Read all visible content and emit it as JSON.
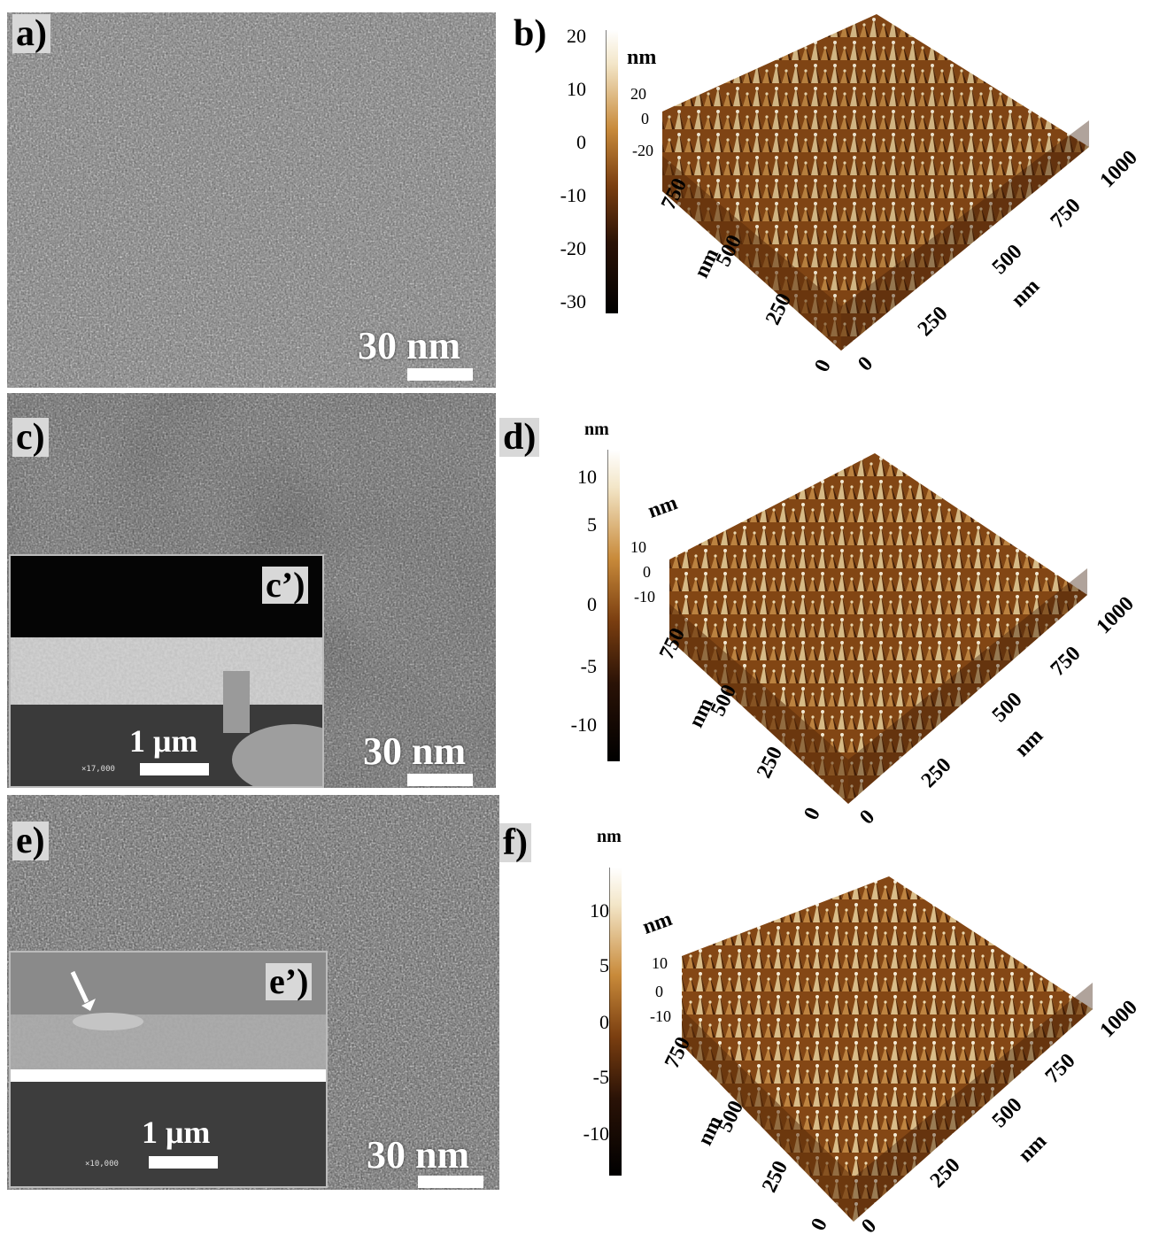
{
  "panels": {
    "a": {
      "label": "a)",
      "scale_text": "30 nm"
    },
    "b": {
      "label": "b)",
      "colorbar_ticks": [
        "20",
        "10",
        "0",
        "-10",
        "-20",
        "-30"
      ],
      "unit": "nm",
      "z_ticks": [
        "20",
        "0",
        "-20"
      ],
      "x_ticks": [
        "0",
        "250",
        "500",
        "750",
        "1000"
      ],
      "y_ticks": [
        "0",
        "250",
        "500",
        "750"
      ],
      "x_unit": "nm",
      "y_unit": "nm"
    },
    "c": {
      "label": "c)",
      "scale_text": "30 nm",
      "inset_label": "c’)",
      "inset_scale": "1 μm",
      "inset_mag": "×17,000"
    },
    "d": {
      "label": "d)",
      "colorbar_unit": "nm",
      "colorbar_ticks": [
        "10",
        "5",
        "0",
        "-5",
        "-10"
      ],
      "unit": "nm",
      "z_ticks": [
        "10",
        "0",
        "-10"
      ],
      "x_ticks": [
        "0",
        "250",
        "500",
        "750",
        "1000"
      ],
      "y_ticks": [
        "0",
        "250",
        "500",
        "750"
      ],
      "x_unit": "nm",
      "y_unit": "nm"
    },
    "e": {
      "label": "e)",
      "scale_text": "30 nm",
      "inset_label": "e’)",
      "inset_scale": "1 μm",
      "inset_mag": "×10,000"
    },
    "f": {
      "label": "f)",
      "colorbar_unit": "nm",
      "colorbar_ticks": [
        "10",
        "5",
        "0",
        "-5",
        "-10"
      ],
      "unit": "nm",
      "z_ticks": [
        "10",
        "0",
        "-10"
      ],
      "x_ticks": [
        "0",
        "250",
        "500",
        "750",
        "1000"
      ],
      "y_ticks": [
        "0",
        "250",
        "500",
        "750"
      ],
      "x_unit": "nm",
      "y_unit": "nm"
    }
  },
  "colors": {
    "afm_dark": "#3a1c08",
    "afm_mid": "#a8621e",
    "afm_light": "#f3e6c8",
    "sem_gray": "#7d7d7d"
  }
}
